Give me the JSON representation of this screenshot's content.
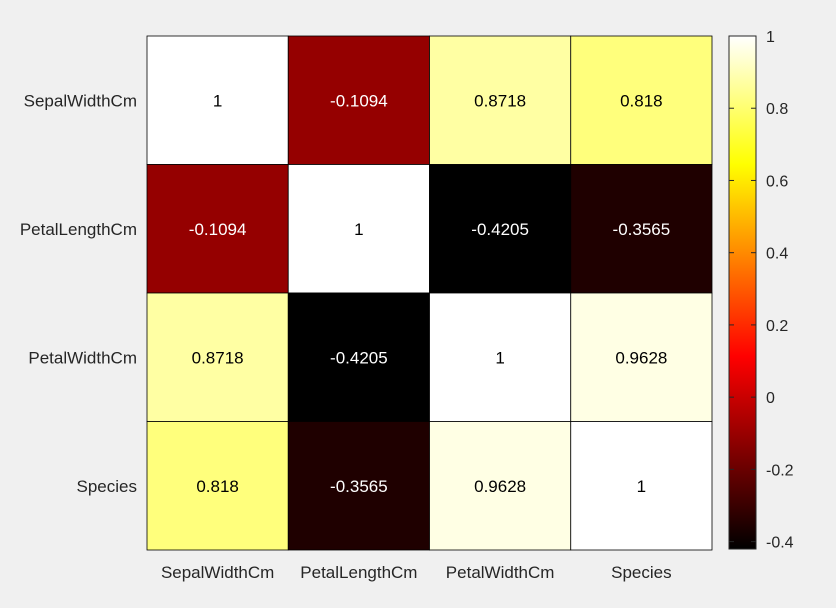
{
  "chart_data": {
    "type": "heatmap",
    "title": "",
    "xlabel": "",
    "ylabel": "",
    "row_labels": [
      "SepalWidthCm",
      "PetalLengthCm",
      "PetalWidthCm",
      "Species"
    ],
    "col_labels": [
      "SepalWidthCm",
      "PetalLengthCm",
      "PetalWidthCm",
      "Species"
    ],
    "values": [
      [
        1,
        -0.1094,
        0.8718,
        0.818
      ],
      [
        -0.1094,
        1,
        -0.4205,
        -0.3565
      ],
      [
        0.8718,
        -0.4205,
        1,
        0.9628
      ],
      [
        0.818,
        -0.3565,
        0.9628,
        1
      ]
    ],
    "cell_labels": [
      [
        "1",
        "-0.1094",
        "0.8718",
        "0.818"
      ],
      [
        "-0.1094",
        "1",
        "-0.4205",
        "-0.3565"
      ],
      [
        "0.8718",
        "-0.4205",
        "1",
        "0.9628"
      ],
      [
        "0.818",
        "-0.3565",
        "0.9628",
        "1"
      ]
    ],
    "colormap": "hot",
    "colorbar": {
      "range": [
        -0.4205,
        1
      ],
      "ticks": [
        1,
        0.8,
        0.6,
        0.4,
        0.2,
        0,
        -0.2,
        -0.4
      ],
      "tick_labels": [
        "1",
        "0.8",
        "0.6",
        "0.4",
        "0.2",
        "0",
        "-0.2",
        "-0.4"
      ]
    },
    "colors": {
      "background": "#f0f0f0",
      "grid": "#000000"
    }
  }
}
